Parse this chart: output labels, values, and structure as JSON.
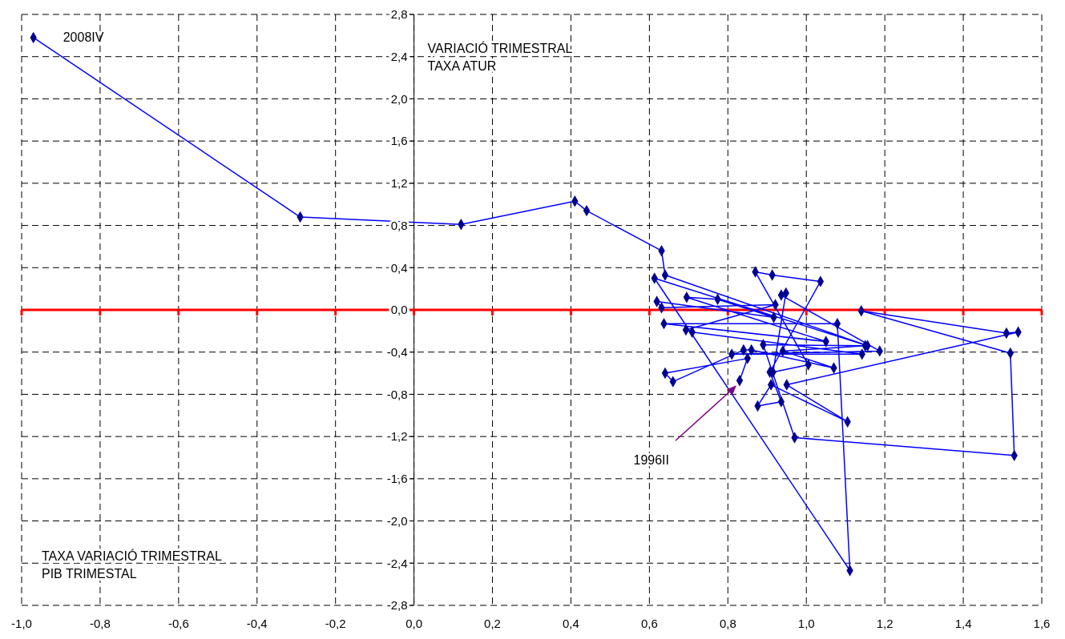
{
  "chart_data": {
    "type": "line",
    "xlabel": "TAXA VARIACIÓ TRIMESTRAL\nPIB TRIMESTAL",
    "ylabel": "VARIACIÓ TRIMESTRAL\nTAXA ATUR",
    "xlim": [
      -1.0,
      1.6
    ],
    "ylim": [
      -2.8,
      2.8
    ],
    "xticks": [
      {
        "value": -1.0,
        "label": "-1,0"
      },
      {
        "value": -0.8,
        "label": "-0,8"
      },
      {
        "value": -0.6,
        "label": "-0,6"
      },
      {
        "value": -0.4,
        "label": "-0,4"
      },
      {
        "value": -0.2,
        "label": "-0,2"
      },
      {
        "value": 0,
        "label": "0,0"
      },
      {
        "value": 0.2,
        "label": "0,2"
      },
      {
        "value": 0.4,
        "label": "0,4"
      },
      {
        "value": 0.6,
        "label": "0,6"
      },
      {
        "value": 0.8,
        "label": "0,8"
      },
      {
        "value": 1.0,
        "label": "1,0"
      },
      {
        "value": 1.2,
        "label": "1,2"
      },
      {
        "value": 1.4,
        "label": "1,4"
      },
      {
        "value": 1.6,
        "label": "1,6"
      }
    ],
    "yticks": [
      {
        "value": -2.8,
        "label": "-2,8"
      },
      {
        "value": -2.4,
        "label": "-2,4"
      },
      {
        "value": -2.0,
        "label": "-2,0"
      },
      {
        "value": -1.6,
        "label": "-1,6"
      },
      {
        "value": -1.2,
        "label": "-1,2"
      },
      {
        "value": -0.8,
        "label": "-0,8"
      },
      {
        "value": -0.4,
        "label": "-0,4"
      },
      {
        "value": 0,
        "label": "0,0"
      },
      {
        "value": 0.4,
        "label": "0,4"
      },
      {
        "value": 0.8,
        "label": "0,8"
      },
      {
        "value": 1.2,
        "label": "1,2"
      },
      {
        "value": 1.6,
        "label": "1,6"
      },
      {
        "value": 2.0,
        "label": "2,0"
      },
      {
        "value": 2.4,
        "label": "2,4"
      },
      {
        "value": 2.8,
        "label": "2,8"
      }
    ],
    "grid": true,
    "marker": "diamond",
    "line_style": "solid",
    "ref_lines": [
      {
        "axis": "y",
        "value": 0,
        "color": "#ff0000"
      }
    ],
    "annotations": [
      {
        "text": "2008IV",
        "x": -0.97,
        "y": 2.58
      },
      "1996II"
    ],
    "series": [
      {
        "color": "#0000ff",
        "x": [
          0.83,
          0.85,
          0.64,
          0.66,
          0.84,
          0.86,
          1.07,
          0.94,
          1.15,
          0.89,
          0.97,
          1.53,
          1.52,
          1.14,
          1.51,
          1.54,
          0.95,
          1.105,
          0.91,
          0.876,
          0.936,
          0.907,
          1.036,
          0.913,
          0.87,
          1.005,
          0.915,
          0.948,
          0.936,
          1.187,
          0.81,
          1.142,
          0.709,
          0.693,
          0.921,
          0.631,
          0.619,
          0.917,
          0.774,
          0.695,
          1.05,
          0.637,
          1.079,
          1.111,
          0.613,
          1.156,
          0.64,
          0.631,
          0.44,
          0.41,
          0.12,
          -0.29,
          -0.97
        ],
        "values": [
          -0.67,
          -0.46,
          -0.6,
          -0.68,
          -0.38,
          -0.38,
          -0.55,
          -0.39,
          -0.34,
          -0.33,
          -1.21,
          -1.38,
          -0.41,
          -0.01,
          -0.22,
          -0.21,
          -0.71,
          -1.06,
          -0.71,
          -0.91,
          -0.87,
          -0.59,
          0.27,
          0.33,
          0.36,
          -0.52,
          -0.59,
          0.16,
          0.14,
          -0.39,
          -0.42,
          -0.42,
          -0.21,
          -0.19,
          0.05,
          0.02,
          0.08,
          -0.07,
          0.1,
          0.12,
          -0.3,
          -0.13,
          -0.13,
          -2.47,
          0.3,
          -0.34,
          0.33,
          0.56,
          0.94,
          1.03,
          0.81,
          0.88,
          2.58
        ]
      }
    ]
  }
}
